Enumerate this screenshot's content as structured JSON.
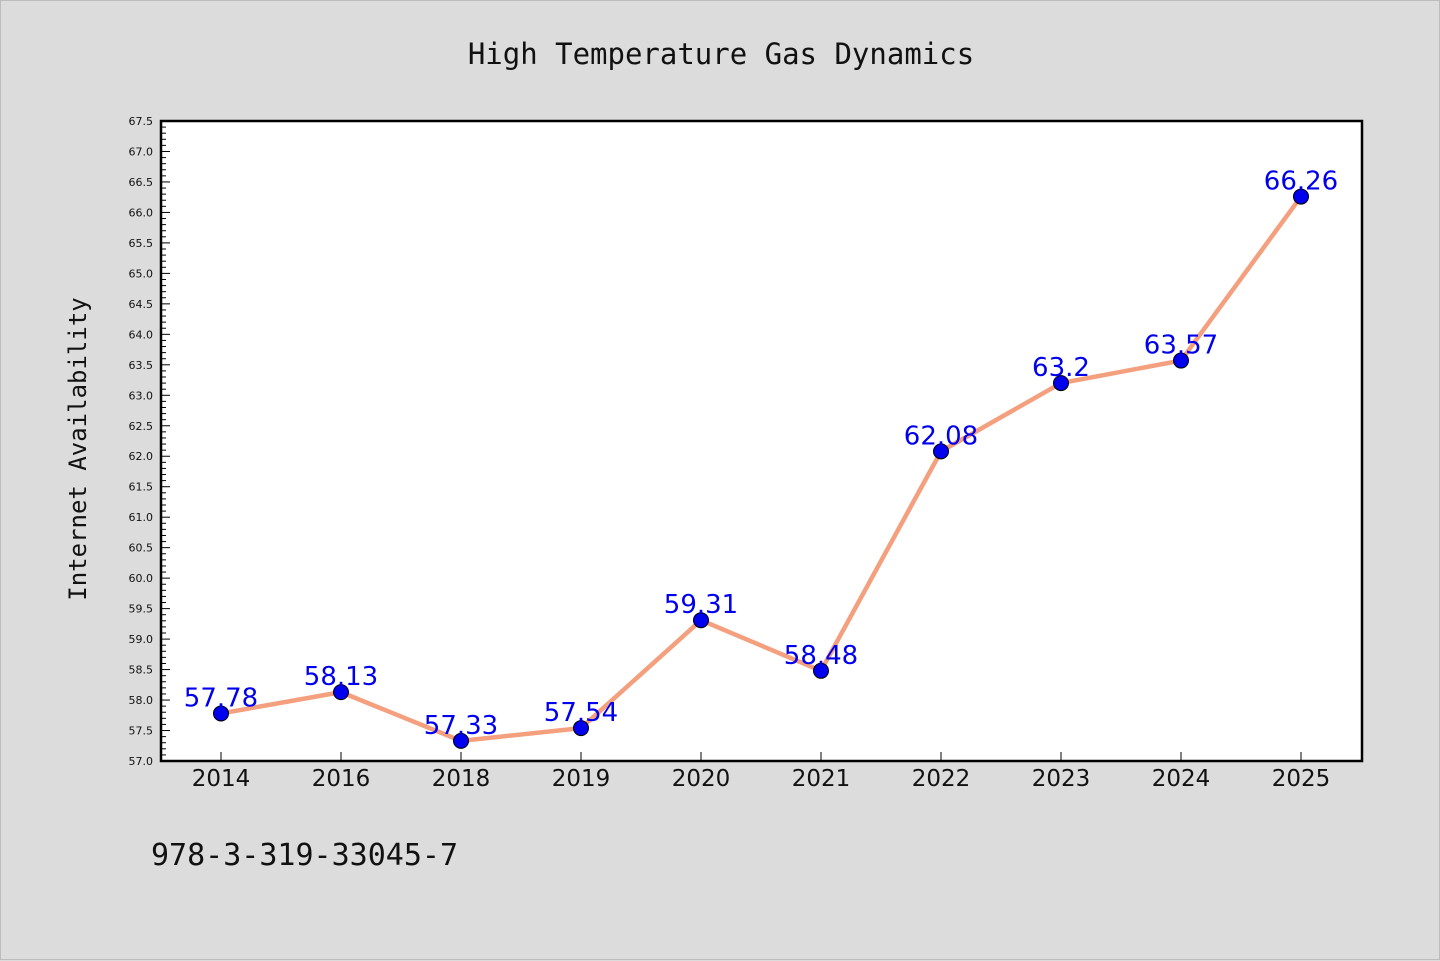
{
  "chart_data": {
    "type": "line",
    "title": "High Temperature Gas Dynamics",
    "xlabel": "",
    "ylabel": "Internet Availability",
    "categories": [
      "2014",
      "2016",
      "2018",
      "2019",
      "2020",
      "2021",
      "2022",
      "2023",
      "2024",
      "2025"
    ],
    "series": [
      {
        "values": [
          57.78,
          58.13,
          57.33,
          57.54,
          59.31,
          58.48,
          62.08,
          63.2,
          63.57,
          66.26
        ],
        "labels": [
          "57.78",
          "58.13",
          "57.33",
          "57.54",
          "59.31",
          "58.48",
          "62.08",
          "63.2",
          "63.57",
          "66.26"
        ],
        "line_color": "#f4a07f",
        "marker_color": "#0000ee"
      }
    ],
    "ylim": [
      57.0,
      67.5
    ],
    "yticks": [
      "57.0",
      "57.5",
      "58.0",
      "58.5",
      "59.0",
      "59.5",
      "60.0",
      "60.5",
      "61.0",
      "61.5",
      "62.0",
      "62.5",
      "63.0",
      "63.5",
      "64.0",
      "64.5",
      "65.0",
      "65.5",
      "66.0",
      "66.5",
      "67.0",
      "67.5"
    ],
    "grid": false,
    "legend": "none"
  },
  "annotation": "978-3-319-33045-7",
  "colors": {
    "background": "#dcdcdc",
    "plot_area": "#ffffff",
    "line": "#f4a07f",
    "marker": "#0000ee",
    "label": "#0000ee"
  }
}
